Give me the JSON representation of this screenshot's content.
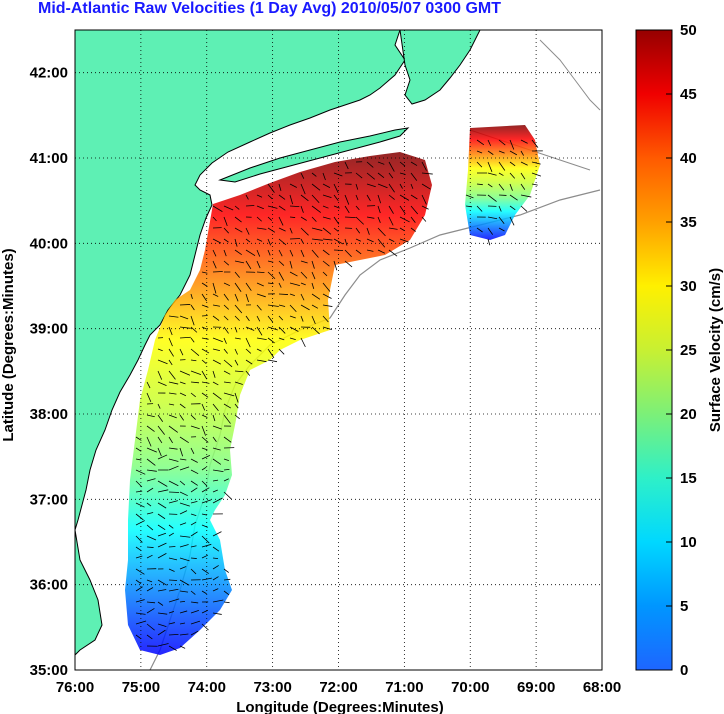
{
  "title": "Mid-Atlantic Raw Velocities (1 Day Avg) 2010/05/07 0300 GMT",
  "xlabel": "Longitude (Degrees:Minutes)",
  "ylabel": "Latitude (Degrees:Minutes)",
  "colorbar_label": "Surface Velocity (cm/s)",
  "x_ticks": [
    "76:00",
    "75:00",
    "74:00",
    "73:00",
    "72:00",
    "71:00",
    "70:00",
    "69:00",
    "68:00"
  ],
  "y_ticks": [
    "35:00",
    "36:00",
    "37:00",
    "38:00",
    "39:00",
    "40:00",
    "41:00",
    "42:00"
  ],
  "colorbar_ticks": [
    "0",
    "5",
    "10",
    "15",
    "20",
    "25",
    "30",
    "35",
    "40",
    "45",
    "50"
  ],
  "colors": {
    "land": "#5ef0b4",
    "coast": "#000000",
    "bathymetry": "#8c8c8c",
    "title": "#1a1aff",
    "grid": "#000000"
  },
  "chart_data": {
    "type": "map",
    "xlim": [
      -76,
      -68
    ],
    "ylim": [
      35,
      42.5
    ],
    "clim": [
      0,
      50
    ],
    "colormap": "jet",
    "grid": true
  }
}
